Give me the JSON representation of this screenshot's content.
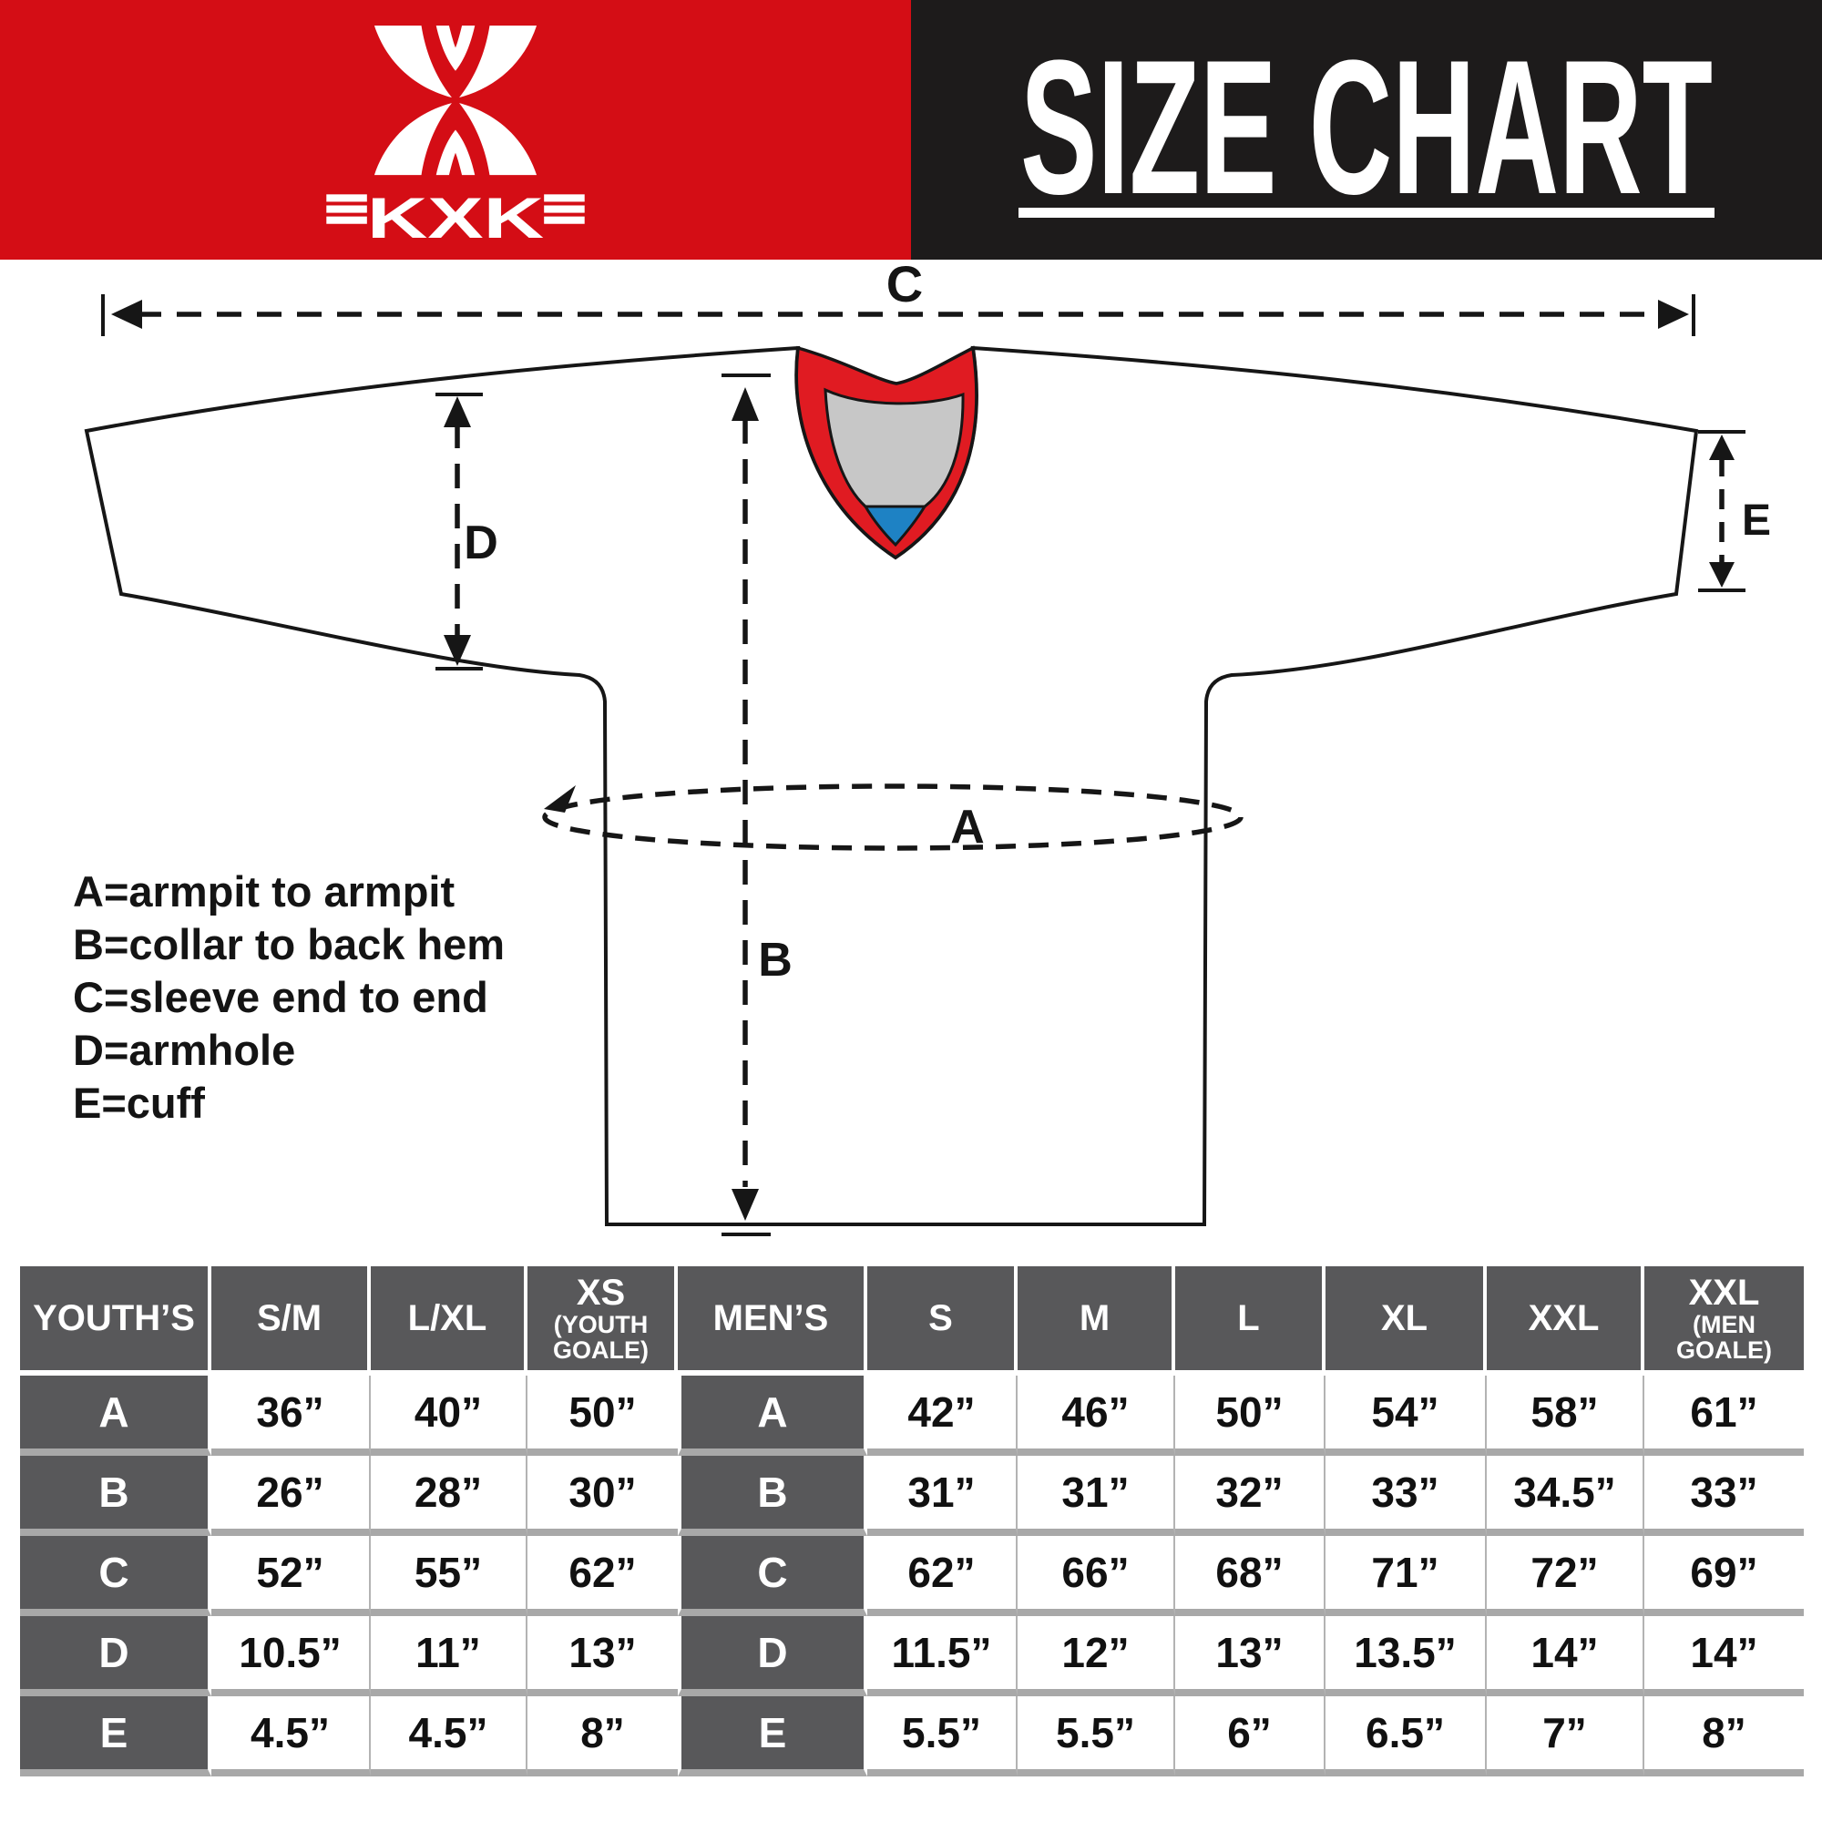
{
  "brand": {
    "logo_text": "KXK"
  },
  "title": "SIZE CHART",
  "diagram": {
    "marks": {
      "a": "A",
      "b": "B",
      "c": "C",
      "d": "D",
      "e": "E"
    },
    "legend": [
      "A=armpit to armpit",
      "B=collar to back hem",
      "C=sleeve end to end",
      "D=armhole",
      "E=cuff"
    ]
  },
  "colors": {
    "brand_red": "#d40d15",
    "header_black": "#1d1b1b",
    "collar_red": "#e01b22",
    "collar_grey": "#c7c7c7",
    "collar_blue": "#1e82c4",
    "table_header_grey": "#58585a",
    "row_divider_grey": "#a8a8a8"
  },
  "table": {
    "columns": [
      {
        "label": "YOUTH’S",
        "kind": "label"
      },
      {
        "label": "S/M",
        "kind": "size"
      },
      {
        "label": "L/XL",
        "kind": "size"
      },
      {
        "label": "XS",
        "sub": "(YOUTH GOALE)",
        "kind": "size"
      },
      {
        "label": "MEN’S",
        "kind": "label"
      },
      {
        "label": "S",
        "kind": "size"
      },
      {
        "label": "M",
        "kind": "size"
      },
      {
        "label": "L",
        "kind": "size"
      },
      {
        "label": "XL",
        "kind": "size"
      },
      {
        "label": "XXL",
        "kind": "size"
      },
      {
        "label": "XXL",
        "sub": "(MEN GOALE)",
        "kind": "size"
      }
    ],
    "rows": [
      [
        "A",
        "36”",
        "40”",
        "50”",
        "A",
        "42”",
        "46”",
        "50”",
        "54”",
        "58”",
        "61”"
      ],
      [
        "B",
        "26”",
        "28”",
        "30”",
        "B",
        "31”",
        "31”",
        "32”",
        "33”",
        "34.5”",
        "33”"
      ],
      [
        "C",
        "52”",
        "55”",
        "62”",
        "C",
        "62”",
        "66”",
        "68”",
        "71”",
        "72”",
        "69”"
      ],
      [
        "D",
        "10.5”",
        "11”",
        "13”",
        "D",
        "11.5”",
        "12”",
        "13”",
        "13.5”",
        "14”",
        "14”"
      ],
      [
        "E",
        "4.5”",
        "4.5”",
        "8”",
        "E",
        "5.5”",
        "5.5”",
        "6”",
        "6.5”",
        "7”",
        "8”"
      ]
    ]
  }
}
